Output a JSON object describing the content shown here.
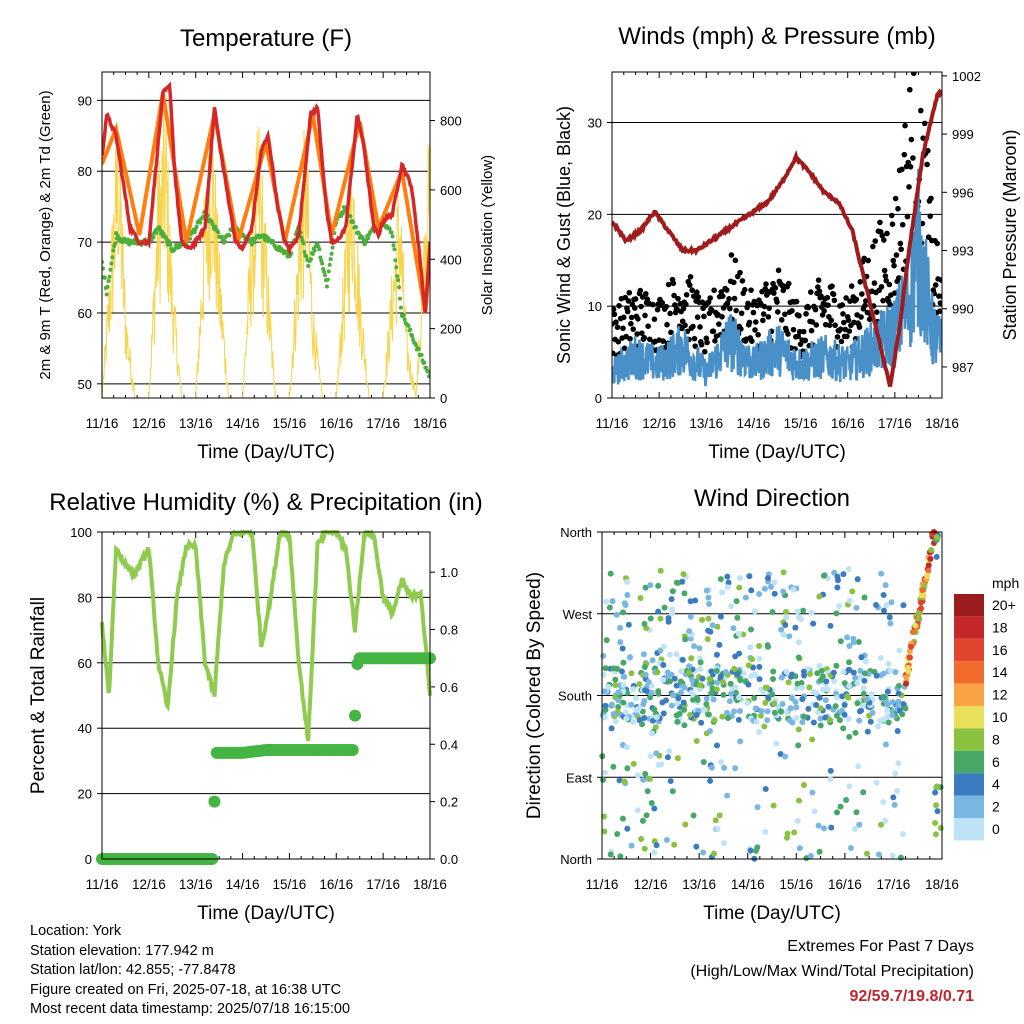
{
  "chart_data": [
    {
      "type": "line",
      "title": "Temperature (F)",
      "xlabel": "Time (Day/UTC)",
      "ylabel": "2m & 9m T (Red, Orange) & 2m Td (Green)",
      "ylabel_right": "Solar Insolation (Yellow)",
      "x_ticks": [
        "11/16",
        "12/16",
        "13/16",
        "14/16",
        "15/16",
        "16/16",
        "17/16",
        "18/16"
      ],
      "ylim": [
        48,
        94
      ],
      "y_ticks": [
        50,
        60,
        70,
        80,
        90
      ],
      "y2lim": [
        0,
        940
      ],
      "y2_ticks": [
        0,
        200,
        400,
        600,
        800
      ],
      "grid": "horizontal",
      "series": [
        {
          "name": "2m T",
          "color": "#d62728",
          "unit": "F",
          "x": [
            0,
            0.1,
            0.3,
            0.6,
            0.8,
            1.0,
            1.2,
            1.3,
            1.45,
            1.55,
            1.7,
            1.85,
            2.0,
            2.2,
            2.4,
            2.55,
            2.75,
            2.85,
            3.0,
            3.2,
            3.4,
            3.55,
            3.75,
            3.9,
            4.0,
            4.2,
            4.45,
            4.6,
            4.8,
            4.9,
            5.0,
            5.2,
            5.45,
            5.6,
            5.8,
            5.9,
            6.0,
            6.2,
            6.4,
            6.6,
            6.75,
            6.9,
            7.0
          ],
          "values": [
            82,
            88,
            85,
            72,
            70,
            70,
            84,
            91,
            92,
            80,
            70,
            69,
            70,
            72,
            89,
            82,
            74,
            70,
            69,
            72,
            83,
            85,
            75,
            70,
            69,
            71,
            88,
            89,
            74,
            70,
            70,
            72,
            88,
            83,
            72,
            71,
            73,
            74,
            81,
            78,
            70,
            60,
            70
          ]
        },
        {
          "name": "9m T",
          "color": "#ff7f0e",
          "unit": "F",
          "x": [
            0,
            0.3,
            0.8,
            1.3,
            1.8,
            2.4,
            2.9,
            3.5,
            3.9,
            4.5,
            4.9,
            5.5,
            5.9,
            6.4,
            6.9,
            7.0
          ],
          "values": [
            81,
            86,
            71,
            91,
            70,
            88,
            70,
            84,
            70,
            88,
            71,
            87,
            72,
            80,
            60,
            69
          ]
        },
        {
          "name": "2m Td",
          "color": "#4cae3b",
          "unit": "F",
          "x": [
            0,
            0.1,
            0.3,
            0.5,
            0.7,
            1.0,
            1.2,
            1.5,
            1.8,
            2.0,
            2.2,
            2.4,
            2.6,
            2.8,
            3.0,
            3.2,
            3.4,
            3.6,
            3.8,
            4.0,
            4.2,
            4.4,
            4.6,
            4.8,
            5.0,
            5.2,
            5.4,
            5.6,
            5.8,
            6.0,
            6.2,
            6.4,
            6.6,
            6.8,
            7.0
          ],
          "values": [
            67,
            63,
            71,
            70,
            70,
            70,
            72,
            69,
            70,
            72,
            74,
            72,
            70,
            72,
            71,
            70,
            71,
            70,
            69,
            68,
            72,
            67,
            70,
            64,
            73,
            75,
            72,
            70,
            72,
            73,
            71,
            60,
            57,
            54,
            51
          ]
        },
        {
          "name": "Solar Insolation",
          "color": "#f7d44a",
          "unit": "W/m2",
          "x": [
            0,
            0.2,
            0.35,
            0.5,
            0.7,
            1.0,
            1.2,
            1.35,
            1.5,
            1.7,
            2.0,
            2.2,
            2.35,
            2.5,
            2.7,
            3.0,
            3.2,
            3.35,
            3.5,
            3.7,
            4.0,
            4.2,
            4.35,
            4.5,
            4.7,
            5.0,
            5.2,
            5.35,
            5.5,
            5.7,
            6.0,
            6.2,
            6.35,
            6.5,
            6.7,
            7.0
          ],
          "values": [
            0,
            500,
            920,
            300,
            0,
            0,
            700,
            920,
            400,
            0,
            0,
            650,
            880,
            450,
            0,
            0,
            600,
            840,
            500,
            0,
            0,
            550,
            860,
            300,
            0,
            0,
            500,
            820,
            380,
            0,
            0,
            400,
            700,
            200,
            0,
            860
          ]
        }
      ]
    },
    {
      "type": "line",
      "title": "Winds (mph) & Pressure (mb)",
      "xlabel": "Time (Day/UTC)",
      "ylabel": "Sonic Wind & Gust (Blue, Black)",
      "ylabel_right": "Station Pressure (Maroon)",
      "x_ticks": [
        "11/16",
        "12/16",
        "13/16",
        "14/16",
        "15/16",
        "16/16",
        "17/16",
        "18/16"
      ],
      "ylim": [
        0,
        35.5
      ],
      "y_ticks": [
        0,
        10,
        20,
        30
      ],
      "y2lim": [
        985.4,
        1002.2
      ],
      "y2_ticks": [
        987,
        990,
        993,
        996,
        999,
        1002
      ],
      "grid": "horizontal",
      "series": [
        {
          "name": "Sonic Wind",
          "color": "#4a90c8",
          "unit": "mph",
          "x": [
            0,
            0.5,
            1.0,
            1.5,
            2.0,
            2.5,
            3.0,
            3.5,
            4.0,
            4.5,
            5.0,
            5.5,
            6.0,
            6.3,
            6.5,
            6.8,
            7.0
          ],
          "values": [
            3,
            5,
            4,
            6,
            3,
            7,
            4,
            6,
            4,
            5,
            4,
            6,
            8,
            12,
            18,
            8,
            6
          ]
        },
        {
          "name": "Gust",
          "color": "#000000",
          "unit": "mph",
          "x": [
            0,
            0.5,
            1.0,
            1.5,
            2.0,
            2.5,
            3.0,
            3.5,
            4.0,
            4.5,
            5.0,
            5.5,
            6.0,
            6.3,
            6.5,
            6.8,
            7.0
          ],
          "values": [
            8,
            10,
            9,
            12,
            8,
            13,
            9,
            12,
            8,
            11,
            9,
            14,
            18,
            28,
            33,
            16,
            11
          ]
        },
        {
          "name": "Station Pressure",
          "color": "#a01c1c",
          "unit": "mb",
          "x": [
            0,
            0.3,
            0.6,
            0.9,
            1.2,
            1.5,
            1.8,
            2.1,
            2.4,
            2.7,
            3.0,
            3.3,
            3.6,
            3.9,
            4.2,
            4.5,
            4.8,
            5.1,
            5.4,
            5.7,
            5.9,
            6.1,
            6.3,
            6.6,
            6.9,
            7.0
          ],
          "values": [
            994.5,
            993.5,
            994,
            995,
            994,
            993,
            993,
            993.5,
            994,
            994.5,
            995,
            995.5,
            996.5,
            997.8,
            997,
            996,
            995.5,
            994,
            991,
            988,
            986,
            989,
            993,
            998,
            1001,
            1001.2
          ]
        }
      ]
    },
    {
      "type": "line",
      "title": "Relative Humidity (%) & Precipitation (in)",
      "xlabel": "Time (Day/UTC)",
      "ylabel": "Percent & Total Rainfall",
      "x_ticks": [
        "11/16",
        "12/16",
        "13/16",
        "14/16",
        "15/16",
        "16/16",
        "17/16",
        "18/16"
      ],
      "ylim": [
        0,
        100
      ],
      "y_ticks": [
        0,
        20,
        40,
        60,
        80,
        100
      ],
      "y2lim": [
        0,
        1.14
      ],
      "y2_ticks": [
        "0.0",
        "0.2",
        "0.4",
        "0.6",
        "0.8",
        "1.0"
      ],
      "grid": "horizontal",
      "series": [
        {
          "name": "Relative Humidity",
          "color": "#8ecb4f",
          "unit": "%",
          "x": [
            0,
            0.15,
            0.3,
            0.5,
            0.7,
            1.0,
            1.2,
            1.4,
            1.6,
            1.8,
            2.0,
            2.2,
            2.4,
            2.6,
            2.8,
            3.0,
            3.2,
            3.4,
            3.6,
            3.8,
            4.0,
            4.2,
            4.4,
            4.6,
            4.8,
            5.0,
            5.2,
            5.4,
            5.6,
            5.8,
            6.0,
            6.2,
            6.4,
            6.6,
            6.8,
            7.0
          ],
          "values": [
            72,
            50,
            95,
            90,
            87,
            95,
            60,
            46,
            80,
            96,
            95,
            60,
            50,
            90,
            99,
            100,
            100,
            65,
            80,
            100,
            99,
            60,
            36,
            96,
            100,
            100,
            95,
            70,
            100,
            99,
            80,
            75,
            85,
            80,
            82,
            50
          ]
        },
        {
          "name": "Total Precipitation",
          "color": "#44b543",
          "unit": "in",
          "x": [
            0,
            1.0,
            2.0,
            2.35,
            2.4,
            2.45,
            2.5,
            3.0,
            3.5,
            4.0,
            4.5,
            5.0,
            5.35,
            5.4,
            5.45,
            5.5,
            6.0,
            6.5,
            7.0
          ],
          "values": [
            0,
            0,
            0,
            0,
            0.2,
            0.37,
            0.37,
            0.37,
            0.38,
            0.38,
            0.38,
            0.38,
            0.38,
            0.5,
            0.68,
            0.7,
            0.7,
            0.7,
            0.7
          ]
        }
      ]
    },
    {
      "type": "scatter",
      "title": "Wind Direction",
      "xlabel": "Time (Day/UTC)",
      "ylabel": "Direction (Colored By Speed)",
      "x_ticks": [
        "11/16",
        "12/16",
        "13/16",
        "14/16",
        "15/16",
        "16/16",
        "17/16",
        "18/16"
      ],
      "y_ticks": [
        "North",
        "East",
        "South",
        "West",
        "North"
      ],
      "ylim": [
        0,
        360
      ],
      "grid": "horizontal",
      "colorbar": {
        "title": "mph",
        "labels": [
          "20+",
          "18",
          "16",
          "14",
          "12",
          "10",
          "8",
          "6",
          "4",
          "2",
          "0"
        ],
        "colors": [
          "#9b1c1c",
          "#c4282a",
          "#e0452e",
          "#f06b2c",
          "#f9a346",
          "#e8e05a",
          "#8ac240",
          "#47a767",
          "#3b7cc0",
          "#79b6e2",
          "#bfe3f6"
        ]
      }
    }
  ],
  "info": {
    "location": "Location: York",
    "elevation": "Station elevation: 177.942 m",
    "latlon": "Station lat/lon: 42.855; -77.8478",
    "created": "Figure created on Fri, 2025-07-18, at 16:38 UTC",
    "recent": "Most recent data timestamp: 2025/07/18 16:15:00"
  },
  "extremes": {
    "line1": "Extremes For Past 7 Days",
    "line2": "(High/Low/Max Wind/Total Precipitation)",
    "values": "92/59.7/19.8/0.71"
  }
}
